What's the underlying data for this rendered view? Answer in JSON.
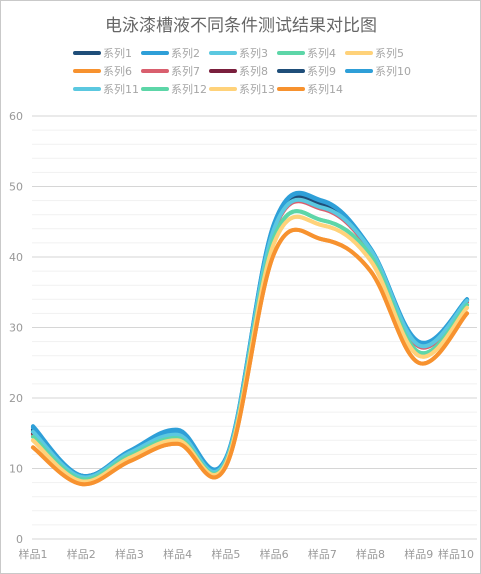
{
  "chart_data": {
    "type": "line",
    "title": "电泳漆槽液不同条件测试结果对比图",
    "xlabel": "",
    "ylabel": "",
    "categories": [
      "样品1",
      "样品2",
      "样品3",
      "样品4",
      "样品5",
      "样品6",
      "样品7",
      "样品8",
      "样品9",
      "样品10"
    ],
    "ylim": [
      0,
      60
    ],
    "yticks": [
      0,
      10,
      20,
      30,
      40,
      50,
      60
    ],
    "grid": true,
    "legend_position": "top",
    "smooth": true,
    "series": [
      {
        "name": "系列1",
        "color": "#1f4e79",
        "values": [
          15.5,
          9.0,
          12.3,
          14.8,
          11.3,
          44.5,
          47.5,
          41.0,
          27.8,
          34.0
        ]
      },
      {
        "name": "系列2",
        "color": "#2e9fd8",
        "values": [
          16.0,
          9.0,
          12.5,
          15.5,
          11.5,
          44.8,
          48.0,
          41.2,
          28.0,
          34.0
        ]
      },
      {
        "name": "系列3",
        "color": "#5bc8e0",
        "values": [
          15.2,
          8.8,
          12.2,
          14.8,
          11.2,
          44.0,
          47.0,
          41.0,
          27.5,
          33.8
        ]
      },
      {
        "name": "系列4",
        "color": "#5dd6a8",
        "values": [
          14.5,
          8.5,
          11.8,
          14.3,
          10.9,
          42.8,
          45.2,
          40.2,
          26.5,
          33.2
        ]
      },
      {
        "name": "系列5",
        "color": "#ffd27a",
        "values": [
          14.0,
          8.2,
          11.5,
          14.0,
          10.7,
          42.0,
          44.5,
          39.5,
          26.0,
          32.8
        ]
      },
      {
        "name": "系列6",
        "color": "#f7922f",
        "values": [
          13.0,
          7.8,
          11.0,
          13.5,
          10.3,
          40.5,
          42.5,
          38.0,
          25.0,
          32.0
        ]
      },
      {
        "name": "系列7",
        "color": "#d95f6e",
        "values": [
          14.8,
          8.7,
          12.0,
          14.5,
          11.0,
          43.8,
          46.8,
          40.8,
          27.3,
          33.6
        ]
      },
      {
        "name": "系列8",
        "color": "#7a1f3d",
        "values": [
          15.0,
          8.8,
          12.1,
          14.6,
          11.1,
          44.2,
          47.2,
          41.0,
          27.6,
          33.8
        ]
      },
      {
        "name": "系列9",
        "color": "#1f4e79",
        "values": [
          15.3,
          8.9,
          12.2,
          14.8,
          11.2,
          44.4,
          47.6,
          41.1,
          27.7,
          33.9
        ]
      },
      {
        "name": "系列10",
        "color": "#2e9fd8",
        "values": [
          15.8,
          9.0,
          12.4,
          15.3,
          11.4,
          44.7,
          47.9,
          41.2,
          27.9,
          34.0
        ]
      },
      {
        "name": "系列11",
        "color": "#5bc8e0",
        "values": [
          15.2,
          8.8,
          12.2,
          14.8,
          11.2,
          44.0,
          47.0,
          41.0,
          27.5,
          33.8
        ]
      },
      {
        "name": "系列12",
        "color": "#5dd6a8",
        "values": [
          14.5,
          8.5,
          11.8,
          14.3,
          10.9,
          42.8,
          45.2,
          40.2,
          26.5,
          33.2
        ]
      },
      {
        "name": "系列13",
        "color": "#ffd27a",
        "values": [
          14.0,
          8.2,
          11.5,
          14.0,
          10.7,
          42.0,
          44.5,
          39.5,
          26.0,
          32.8
        ]
      },
      {
        "name": "系列14",
        "color": "#f7922f",
        "values": [
          13.0,
          7.8,
          11.0,
          13.5,
          10.3,
          40.5,
          42.5,
          38.0,
          25.0,
          32.0
        ]
      }
    ]
  }
}
